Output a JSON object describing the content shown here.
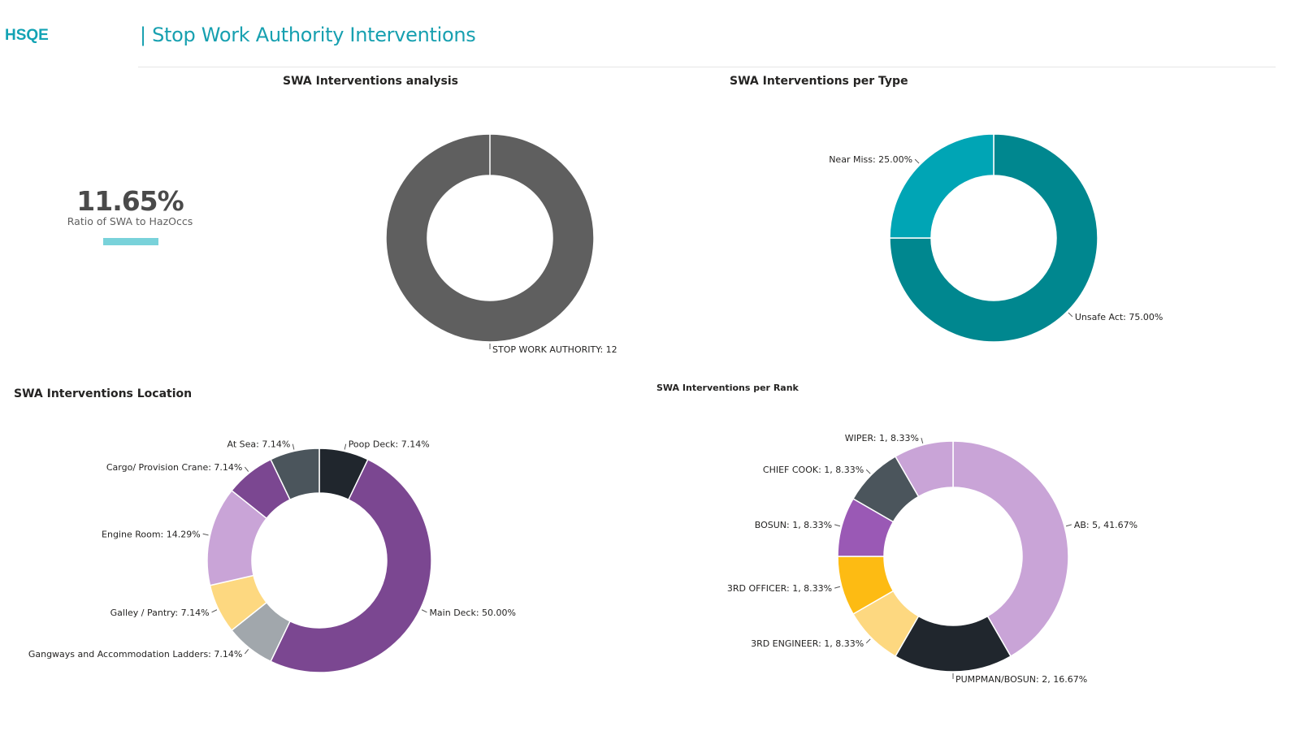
{
  "header": {
    "brand": "HSQE",
    "title": "| Stop Work Authority Interventions"
  },
  "kpi": {
    "value": "11.65%",
    "label": "Ratio of SWA to HazOccs",
    "accent_color": "#79d2da"
  },
  "chart_data": [
    {
      "id": "analysis",
      "type": "pie",
      "donut": true,
      "title": "SWA Interventions analysis",
      "labels": [
        "STOP WORK AUTHORITY"
      ],
      "values": [
        12
      ],
      "display_labels": [
        "STOP WORK AUTHORITY: 12"
      ],
      "colors": [
        "#5f5f5f"
      ]
    },
    {
      "id": "type",
      "type": "pie",
      "donut": true,
      "title": "SWA Interventions per Type",
      "labels": [
        "Unsafe Act",
        "Near Miss"
      ],
      "values": [
        75.0,
        25.0
      ],
      "display_labels": [
        "Unsafe Act: 75.00%",
        "Near Miss: 25.00%"
      ],
      "colors": [
        "#00878f",
        "#00a5b5"
      ]
    },
    {
      "id": "location",
      "type": "pie",
      "donut": true,
      "title": "SWA Interventions Location",
      "labels": [
        "Poop Deck",
        "Main Deck",
        "Gangways and Accommodation Ladders",
        "Galley / Pantry",
        "Engine Room",
        "Cargo/ Provision Crane",
        "At Sea"
      ],
      "values": [
        7.14,
        50.0,
        7.14,
        7.14,
        14.29,
        7.14,
        7.14
      ],
      "display_labels": [
        "Poop Deck: 7.14%",
        "Main Deck: 50.00%",
        "Gangways and Accommodation Ladders: 7.14%",
        "Galley / Pantry: 7.14%",
        "Engine Room: 14.29%",
        "Cargo/ Provision Crane: 7.14%",
        "At Sea: 7.14%"
      ],
      "colors": [
        "#20262d",
        "#7b4791",
        "#a1a7ac",
        "#fdd880",
        "#c9a4d7",
        "#7b4791",
        "#4b555c"
      ]
    },
    {
      "id": "rank",
      "type": "pie",
      "donut": true,
      "title": "SWA Interventions  per Rank",
      "labels": [
        "AB",
        "PUMPMAN/BOSUN",
        "3RD ENGINEER",
        "3RD OFFICER",
        "BOSUN",
        "CHIEF COOK",
        "WIPER"
      ],
      "values": [
        5,
        2,
        1,
        1,
        1,
        1,
        1
      ],
      "percentages": [
        41.67,
        16.67,
        8.33,
        8.33,
        8.33,
        8.33,
        8.33
      ],
      "display_labels": [
        "AB: 5,  41.67%",
        "PUMPMAN/BOSUN: 2,  16.67%",
        "3RD ENGINEER: 1,  8.33%",
        "3RD OFFICER: 1,  8.33%",
        "BOSUN: 1,  8.33%",
        "CHIEF COOK: 1,  8.33%",
        "WIPER: 1,  8.33%"
      ],
      "colors": [
        "#c9a4d7",
        "#20262d",
        "#fdd880",
        "#fdbb13",
        "#9a59b5",
        "#4b555c",
        "#c9a4d7"
      ]
    }
  ]
}
